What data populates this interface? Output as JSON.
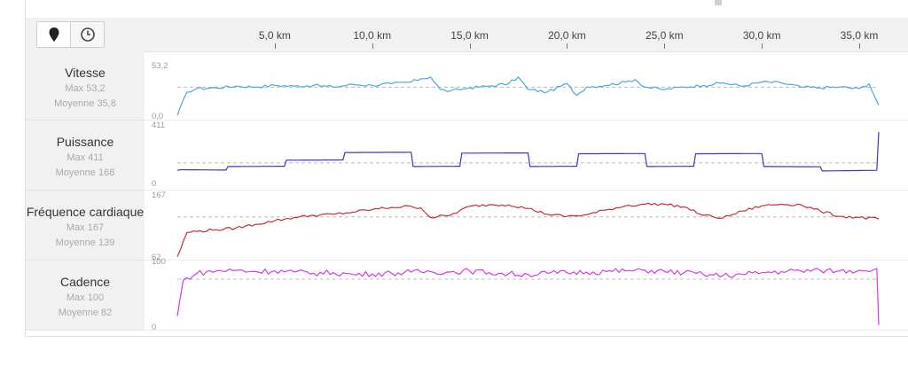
{
  "toolbar": {
    "buttons": [
      {
        "icon": "map-pin-icon",
        "active": true
      },
      {
        "icon": "clock-icon",
        "active": false
      }
    ]
  },
  "distance_axis": {
    "ticks": [
      "5,0 km",
      "10,0 km",
      "15,0 km",
      "20,0 km",
      "25,0 km",
      "30,0 km",
      "35,0 km"
    ]
  },
  "metrics": [
    {
      "name": "Vitesse",
      "max_label": "Max 53,2",
      "avg_label": "Moyenne 35,8",
      "axis_max": "53,2",
      "axis_min": "0,0",
      "color": "#4aa8dc",
      "avg_color": "#bbbbbb"
    },
    {
      "name": "Puissance",
      "max_label": "Max 411",
      "avg_label": "Moyenne 168",
      "axis_max": "411",
      "axis_min": "0",
      "color": "#4b2fc4",
      "avg_color": "#bbbbbb"
    },
    {
      "name": "Fréquence cardiaque",
      "max_label": "Max 167",
      "avg_label": "Moyenne 139",
      "axis_max": "167",
      "axis_min": "62",
      "color": "#c72b3b",
      "avg_color": "#bbbbbb"
    },
    {
      "name": "Cadence",
      "max_label": "Max 100",
      "avg_label": "Moyenne 82",
      "axis_max": "100",
      "axis_min": "0",
      "color": "#d63ae3",
      "avg_color": "#bbbbbb"
    }
  ],
  "chart_data": [
    {
      "type": "line",
      "title": "Vitesse",
      "x": [
        0,
        0.5,
        1,
        2,
        3,
        4,
        5,
        6,
        7,
        8,
        9,
        10,
        11,
        12,
        12.5,
        13,
        13.5,
        14,
        15,
        16,
        17,
        17.5,
        18,
        19,
        20,
        20.5,
        21,
        22,
        23,
        23.5,
        24,
        25,
        26,
        27,
        28,
        29,
        30,
        31,
        32,
        33,
        34,
        35,
        35.5,
        36
      ],
      "y": [
        2,
        30,
        34,
        35,
        37,
        36,
        38,
        37,
        38,
        36,
        39,
        38,
        40,
        42,
        46,
        48,
        33,
        31,
        35,
        37,
        40,
        48,
        33,
        30,
        40,
        26,
        36,
        38,
        42,
        45,
        36,
        33,
        36,
        38,
        41,
        37,
        42,
        41,
        36,
        35,
        36,
        34,
        40,
        14
      ],
      "xlabel": "",
      "ylabel": "",
      "ylim": [
        0,
        53.2
      ],
      "xlim": [
        0,
        36
      ],
      "average": 35.8
    },
    {
      "type": "line",
      "title": "Puissance",
      "x": [
        0,
        0.2,
        2.5,
        2.6,
        5.5,
        5.6,
        8.5,
        8.6,
        12,
        12.1,
        14.5,
        14.6,
        18,
        18.1,
        20.5,
        20.6,
        24,
        24.1,
        26.5,
        26.6,
        30,
        30.1,
        33,
        33.1,
        35.9,
        36
      ],
      "y": [
        110,
        115,
        112,
        140,
        142,
        190,
        192,
        250,
        252,
        140,
        142,
        245,
        247,
        140,
        142,
        240,
        242,
        140,
        142,
        240,
        242,
        140,
        138,
        105,
        110,
        411
      ],
      "xlabel": "",
      "ylabel": "",
      "ylim": [
        0,
        411
      ],
      "xlim": [
        0,
        36
      ],
      "average": 168
    },
    {
      "type": "line",
      "title": "Fréquence cardiaque",
      "x": [
        0,
        0.5,
        1,
        2,
        3,
        4,
        5,
        6,
        7,
        8,
        9,
        10,
        11,
        12,
        12.5,
        13,
        14,
        15,
        16,
        17,
        18,
        19,
        20,
        21,
        22,
        23,
        24,
        25,
        26,
        27,
        28,
        29,
        30,
        31,
        32,
        33,
        34,
        35,
        36
      ],
      "y": [
        64,
        110,
        112,
        115,
        118,
        125,
        132,
        138,
        142,
        144,
        148,
        153,
        157,
        159,
        156,
        138,
        142,
        159,
        162,
        162,
        155,
        144,
        140,
        143,
        152,
        160,
        163,
        163,
        158,
        142,
        137,
        150,
        160,
        163,
        162,
        150,
        140,
        138,
        135
      ],
      "xlabel": "",
      "ylabel": "",
      "ylim": [
        62,
        167
      ],
      "xlim": [
        0,
        36
      ],
      "average": 139
    },
    {
      "type": "line",
      "title": "Cadence",
      "x": [
        0,
        0.3,
        1,
        2,
        3,
        4,
        5,
        6,
        7,
        8,
        9,
        10,
        11,
        12,
        13,
        14,
        15,
        16,
        17,
        18,
        19,
        20,
        21,
        22,
        23,
        24,
        25,
        26,
        27,
        28,
        29,
        30,
        31,
        32,
        33,
        34,
        35,
        35.9,
        36
      ],
      "y": [
        20,
        80,
        92,
        96,
        97,
        95,
        96,
        94,
        92,
        93,
        90,
        91,
        92,
        94,
        95,
        94,
        96,
        93,
        91,
        90,
        92,
        93,
        94,
        95,
        96,
        97,
        95,
        93,
        90,
        88,
        90,
        93,
        95,
        96,
        97,
        96,
        97,
        100,
        5
      ],
      "xlabel": "",
      "ylabel": "",
      "ylim": [
        0,
        100
      ],
      "xlim": [
        0,
        36
      ],
      "average": 82
    }
  ]
}
